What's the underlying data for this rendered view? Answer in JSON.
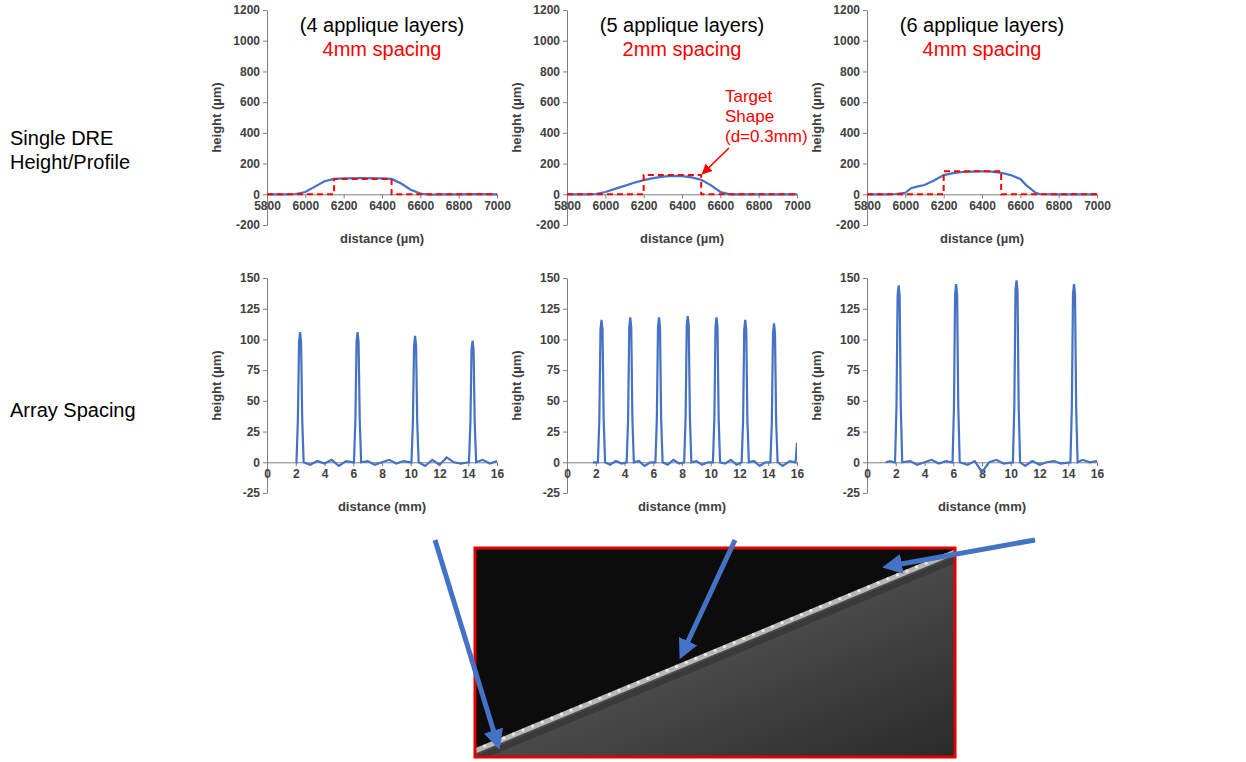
{
  "row_labels": [
    "Single DRE Height/Profile",
    "Array Spacing"
  ],
  "chart_data": [
    {
      "type": "line",
      "title": "(4 applique layers)",
      "subtitle": "4mm spacing",
      "xlabel": "distance (µm)",
      "ylabel": "height (µm)",
      "xlim": [
        5800,
        7000
      ],
      "xticks": [
        5800,
        6000,
        6200,
        6400,
        6600,
        6800,
        7000
      ],
      "ylim": [
        -200,
        1200
      ],
      "yticks": [
        -200,
        0,
        200,
        400,
        600,
        800,
        1000,
        1200
      ],
      "series": [
        {
          "color": "#4472c4",
          "line_style": "solid",
          "x": [
            5800,
            5900,
            5950,
            6000,
            6050,
            6100,
            6150,
            6200,
            6300,
            6400,
            6450,
            6500,
            6550,
            6600,
            6650,
            6700,
            6800,
            6900,
            7000
          ],
          "values": [
            0,
            0,
            2,
            15,
            50,
            85,
            100,
            104,
            105,
            104,
            100,
            70,
            30,
            5,
            -3,
            0,
            0,
            1,
            0
          ]
        },
        {
          "color": "#ff0000",
          "line_style": "dashed",
          "x": [
            5800,
            6150,
            6150,
            6450,
            6450,
            7000
          ],
          "values": [
            0,
            0,
            100,
            100,
            0,
            0
          ]
        }
      ]
    },
    {
      "type": "line",
      "title": "(5 applique layers)",
      "subtitle": "2mm spacing",
      "xlabel": "distance (µm)",
      "ylabel": "height (µm)",
      "xlim": [
        5800,
        7000
      ],
      "xticks": [
        5800,
        6000,
        6200,
        6400,
        6600,
        6800,
        7000
      ],
      "ylim": [
        -200,
        1200
      ],
      "yticks": [
        -200,
        0,
        200,
        400,
        600,
        800,
        1000,
        1200
      ],
      "annotations": [
        "Target Shape (d=0.3mm)"
      ],
      "series": [
        {
          "color": "#4472c4",
          "line_style": "solid",
          "x": [
            5800,
            5900,
            5950,
            6000,
            6050,
            6100,
            6150,
            6200,
            6250,
            6300,
            6350,
            6400,
            6450,
            6500,
            6550,
            6600,
            6650,
            6700,
            6800,
            7000
          ],
          "values": [
            0,
            0,
            2,
            15,
            35,
            55,
            75,
            92,
            105,
            115,
            120,
            118,
            110,
            95,
            60,
            15,
            0,
            0,
            0,
            0
          ]
        },
        {
          "color": "#ff0000",
          "line_style": "dashed",
          "x": [
            5800,
            6200,
            6200,
            6500,
            6500,
            7000
          ],
          "values": [
            0,
            0,
            125,
            125,
            0,
            0
          ]
        }
      ]
    },
    {
      "type": "line",
      "title": "(6 applique layers)",
      "subtitle": "4mm spacing",
      "xlabel": "distance (µm)",
      "ylabel": "height (µm)",
      "xlim": [
        5800,
        7000
      ],
      "xticks": [
        5800,
        6000,
        6200,
        6400,
        6600,
        6800,
        7000
      ],
      "ylim": [
        -200,
        1200
      ],
      "yticks": [
        -200,
        0,
        200,
        400,
        600,
        800,
        1000,
        1200
      ],
      "series": [
        {
          "color": "#4472c4",
          "line_style": "solid",
          "x": [
            5800,
            5900,
            5950,
            6000,
            6030,
            6060,
            6100,
            6150,
            6200,
            6250,
            6300,
            6350,
            6400,
            6450,
            6500,
            6550,
            6600,
            6630,
            6650,
            6680,
            6700,
            6800,
            6900,
            7000
          ],
          "values": [
            0,
            0,
            2,
            10,
            40,
            50,
            60,
            90,
            125,
            138,
            145,
            148,
            150,
            148,
            140,
            125,
            100,
            60,
            40,
            10,
            2,
            0,
            0,
            0
          ]
        },
        {
          "color": "#ff0000",
          "line_style": "dashed",
          "x": [
            5800,
            6200,
            6200,
            6500,
            6500,
            7000
          ],
          "values": [
            0,
            0,
            150,
            150,
            0,
            0
          ]
        }
      ]
    },
    {
      "type": "line",
      "xlabel": "distance (mm)",
      "ylabel": "height (µm)",
      "xlim": [
        0,
        16
      ],
      "xticks": [
        0,
        2,
        4,
        6,
        8,
        10,
        12,
        14,
        16
      ],
      "ylim": [
        -25,
        150
      ],
      "yticks": [
        -25,
        0,
        25,
        50,
        75,
        100,
        125,
        150
      ],
      "series": [
        {
          "color": "#4472c4",
          "line_style": "solid",
          "x": [
            2.0,
            2.05,
            2.15,
            2.23,
            2.3,
            2.37,
            2.45,
            2.55,
            3.0,
            3.5,
            4.0,
            4.5,
            5.0,
            5.5,
            6.0,
            6.05,
            6.15,
            6.23,
            6.3,
            6.37,
            6.45,
            6.55,
            7.0,
            7.5,
            8.0,
            8.5,
            9.0,
            9.5,
            10.0,
            10.05,
            10.15,
            10.23,
            10.3,
            10.37,
            10.45,
            10.55,
            11.0,
            11.5,
            12.0,
            12.5,
            13.0,
            13.5,
            14.0,
            14.05,
            14.15,
            14.23,
            14.3,
            14.37,
            14.45,
            14.55,
            15.0,
            15.5,
            16.0
          ],
          "values": [
            0,
            0,
            35,
            98,
            106,
            98,
            35,
            0,
            -2,
            1,
            -1,
            2,
            -3,
            1,
            0,
            0,
            35,
            98,
            106,
            98,
            35,
            0,
            1,
            -2,
            0,
            2,
            -1,
            1,
            0,
            0,
            33,
            95,
            103,
            95,
            33,
            0,
            -3,
            2,
            -2,
            4,
            0,
            -1,
            0,
            0,
            32,
            92,
            99,
            92,
            32,
            0,
            2,
            -1,
            1
          ]
        }
      ]
    },
    {
      "type": "line",
      "xlabel": "distance (mm)",
      "ylabel": "height (µm)",
      "xlim": [
        0,
        16
      ],
      "xticks": [
        0,
        2,
        4,
        6,
        8,
        10,
        12,
        14,
        16
      ],
      "ylim": [
        -25,
        150
      ],
      "yticks": [
        -25,
        0,
        25,
        50,
        75,
        100,
        125,
        150
      ],
      "series": [
        {
          "color": "#4472c4",
          "line_style": "solid",
          "x": [
            1.8,
            2.0,
            2.15,
            2.25,
            2.33,
            2.4,
            2.47,
            2.55,
            2.65,
            3.0,
            3.4,
            3.8,
            4.15,
            4.25,
            4.33,
            4.4,
            4.47,
            4.55,
            4.65,
            5.0,
            5.4,
            5.8,
            6.15,
            6.25,
            6.33,
            6.4,
            6.47,
            6.55,
            6.65,
            7.0,
            7.4,
            7.8,
            8.15,
            8.25,
            8.33,
            8.4,
            8.47,
            8.55,
            8.65,
            9.0,
            9.4,
            9.8,
            10.15,
            10.25,
            10.33,
            10.4,
            10.47,
            10.55,
            10.65,
            11.0,
            11.4,
            11.8,
            12.15,
            12.25,
            12.33,
            12.4,
            12.47,
            12.55,
            12.65,
            13.0,
            13.4,
            13.8,
            14.15,
            14.25,
            14.33,
            14.4,
            14.47,
            14.55,
            14.65,
            15.0,
            15.5,
            15.9,
            16.0
          ],
          "values": [
            0,
            0,
            0,
            35,
            108,
            116,
            108,
            35,
            0,
            -2,
            1,
            -1,
            0,
            35,
            110,
            118,
            110,
            35,
            0,
            1,
            -3,
            0,
            0,
            35,
            110,
            118,
            110,
            35,
            0,
            -2,
            2,
            -1,
            0,
            36,
            111,
            119,
            111,
            36,
            0,
            1,
            -2,
            0,
            0,
            35,
            110,
            118,
            110,
            35,
            0,
            -1,
            2,
            -2,
            0,
            34,
            108,
            116,
            108,
            34,
            0,
            1,
            -3,
            0,
            0,
            33,
            105,
            113,
            105,
            33,
            0,
            -3,
            1,
            0,
            16
          ]
        }
      ]
    },
    {
      "type": "line",
      "xlabel": "distance (mm)",
      "ylabel": "height (µm)",
      "xlim": [
        0,
        16
      ],
      "xticks": [
        0,
        2,
        4,
        6,
        8,
        10,
        12,
        14,
        16
      ],
      "ylim": [
        -25,
        150
      ],
      "yticks": [
        -25,
        0,
        25,
        50,
        75,
        100,
        125,
        150
      ],
      "series": [
        {
          "color": "#4472c4",
          "line_style": "solid",
          "x": [
            1.3,
            1.6,
            1.9,
            1.95,
            2.05,
            2.13,
            2.2,
            2.27,
            2.35,
            2.45,
            3.0,
            3.5,
            4.0,
            4.5,
            5.0,
            5.5,
            5.9,
            5.95,
            6.05,
            6.13,
            6.2,
            6.27,
            6.35,
            6.45,
            7.0,
            7.5,
            8.0,
            8.5,
            9.0,
            9.5,
            10.1,
            10.15,
            10.25,
            10.33,
            10.4,
            10.47,
            10.55,
            10.65,
            11.0,
            11.5,
            12.0,
            12.5,
            13.0,
            13.5,
            14.1,
            14.15,
            14.25,
            14.33,
            14.4,
            14.47,
            14.55,
            14.65,
            15.0,
            15.5,
            16.0
          ],
          "values": [
            0,
            1,
            0,
            0,
            45,
            136,
            144,
            136,
            45,
            0,
            1,
            -2,
            0,
            2,
            -1,
            1,
            0,
            0,
            45,
            137,
            145,
            137,
            45,
            0,
            -2,
            1,
            -8,
            0,
            2,
            -1,
            0,
            0,
            46,
            140,
            148,
            140,
            46,
            0,
            -3,
            1,
            -2,
            0,
            1,
            -1,
            0,
            0,
            45,
            137,
            145,
            137,
            45,
            0,
            2,
            0,
            1
          ]
        }
      ]
    }
  ]
}
